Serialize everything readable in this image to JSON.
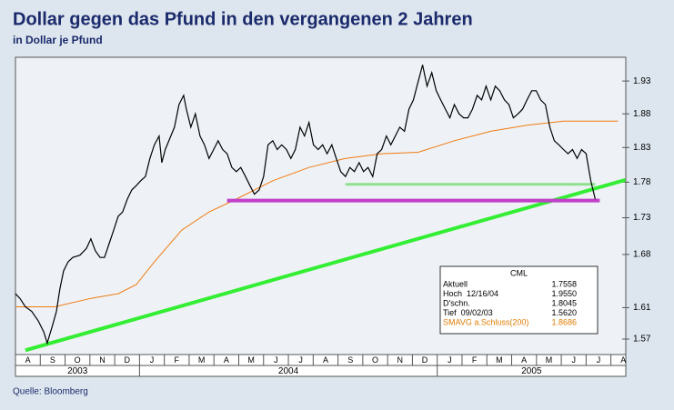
{
  "title": "Dollar gegen das Pfund in den vergangenen 2 Jahren",
  "subtitle": "in Dollar je Pfund",
  "source": "Quelle: Bloomberg",
  "chart_data": {
    "type": "line",
    "log_scale": true,
    "xlim": [
      0,
      24.6
    ],
    "ylim": [
      1.5507,
      1.967
    ],
    "yticks": [
      1.57,
      1.61,
      1.68,
      1.73,
      1.78,
      1.83,
      1.88,
      1.93
    ],
    "months": [
      "A",
      "S",
      "O",
      "N",
      "D",
      "J",
      "F",
      "M",
      "A",
      "M",
      "J",
      "J",
      "A",
      "S",
      "O",
      "N",
      "D",
      "J",
      "F",
      "M",
      "A",
      "M",
      "J",
      "J",
      "A"
    ],
    "years": [
      {
        "label": "2003",
        "range": [
          0,
          5
        ]
      },
      {
        "label": "2004",
        "range": [
          5,
          17
        ]
      },
      {
        "label": "2005",
        "range": [
          17,
          24.6
        ]
      }
    ],
    "series": [
      {
        "color": "#000000",
        "width": 1.2,
        "x": [
          0,
          0.18,
          0.4,
          0.66,
          0.92,
          1.14,
          1.28,
          1.5,
          1.65,
          1.79,
          1.94,
          2.12,
          2.31,
          2.6,
          2.86,
          3.04,
          3.22,
          3.41,
          3.59,
          3.77,
          3.96,
          4.14,
          4.32,
          4.51,
          4.69,
          4.87,
          5.05,
          5.24,
          5.42,
          5.6,
          5.79,
          5.9,
          6.04,
          6.26,
          6.41,
          6.59,
          6.78,
          6.89,
          7.07,
          7.25,
          7.44,
          7.62,
          7.8,
          7.99,
          8.17,
          8.35,
          8.53,
          8.72,
          8.9,
          9.08,
          9.27,
          9.45,
          9.63,
          9.82,
          10,
          10.18,
          10.37,
          10.55,
          10.73,
          10.92,
          11.1,
          11.28,
          11.47,
          11.65,
          11.83,
          12.01,
          12.2,
          12.38,
          12.56,
          12.75,
          12.93,
          13.11,
          13.3,
          13.48,
          13.66,
          13.85,
          14.03,
          14.21,
          14.4,
          14.58,
          14.76,
          14.95,
          15.13,
          15.31,
          15.49,
          15.68,
          15.86,
          16.04,
          16.23,
          16.41,
          16.59,
          16.78,
          16.96,
          17.14,
          17.33,
          17.51,
          17.69,
          17.88,
          18.06,
          18.24,
          18.42,
          18.61,
          18.79,
          18.97,
          19.16,
          19.34,
          19.52,
          19.71,
          19.89,
          20.07,
          20.26,
          20.44,
          20.62,
          20.81,
          20.99,
          21.17,
          21.36,
          21.54,
          21.72,
          21.9,
          22.09,
          22.27,
          22.45,
          22.64,
          22.82,
          23,
          23.19,
          23.37
        ],
        "values": [
          1.628,
          1.622,
          1.611,
          1.605,
          1.593,
          1.579,
          1.565,
          1.588,
          1.605,
          1.634,
          1.658,
          1.67,
          1.676,
          1.679,
          1.688,
          1.701,
          1.685,
          1.676,
          1.676,
          1.694,
          1.713,
          1.732,
          1.738,
          1.756,
          1.769,
          1.775,
          1.782,
          1.788,
          1.814,
          1.834,
          1.847,
          1.808,
          1.827,
          1.847,
          1.86,
          1.894,
          1.908,
          1.887,
          1.86,
          1.88,
          1.847,
          1.834,
          1.814,
          1.827,
          1.84,
          1.827,
          1.821,
          1.801,
          1.795,
          1.801,
          1.788,
          1.775,
          1.763,
          1.769,
          1.788,
          1.834,
          1.84,
          1.827,
          1.834,
          1.827,
          1.814,
          1.827,
          1.86,
          1.847,
          1.867,
          1.834,
          1.827,
          1.834,
          1.821,
          1.834,
          1.814,
          1.795,
          1.788,
          1.801,
          1.795,
          1.808,
          1.795,
          1.801,
          1.788,
          1.821,
          1.827,
          1.847,
          1.834,
          1.847,
          1.86,
          1.854,
          1.887,
          1.901,
          1.929,
          1.955,
          1.922,
          1.943,
          1.915,
          1.901,
          1.887,
          1.874,
          1.894,
          1.88,
          1.874,
          1.874,
          1.887,
          1.908,
          1.901,
          1.922,
          1.901,
          1.922,
          1.915,
          1.901,
          1.894,
          1.874,
          1.88,
          1.887,
          1.901,
          1.915,
          1.915,
          1.901,
          1.894,
          1.86,
          1.84,
          1.834,
          1.827,
          1.821,
          1.827,
          1.814,
          1.827,
          1.821,
          1.782,
          1.756
        ]
      },
      {
        "color": "#f07a10",
        "width": 1,
        "x": [
          0,
          1.58,
          3.04,
          4.14,
          4.87,
          5.6,
          6.7,
          7.8,
          8.9,
          10.37,
          11.83,
          13.3,
          14.76,
          16.23,
          17.69,
          19.16,
          20.62,
          22.09,
          24.29
        ],
        "values": [
          1.611,
          1.611,
          1.622,
          1.628,
          1.64,
          1.67,
          1.713,
          1.738,
          1.756,
          1.782,
          1.801,
          1.814,
          1.821,
          1.823,
          1.84,
          1.854,
          1.863,
          1.869,
          1.869
        ]
      },
      {
        "color": "#33ee33",
        "width": 4,
        "x": [
          0.4,
          24.58
        ],
        "values": [
          1.556,
          1.7832
        ]
      },
      {
        "color": "#8ee08e",
        "width": 3,
        "x": [
          13.3,
          23.37
        ],
        "values": [
          1.777,
          1.777
        ]
      },
      {
        "color": "#c040c8",
        "width": 4,
        "x": [
          8.53,
          23.55
        ],
        "values": [
          1.754,
          1.754
        ]
      }
    ],
    "info_box": {
      "title": "CML",
      "rows": [
        {
          "label": "Aktuell",
          "value": "1.7558",
          "color": "#000000"
        },
        {
          "label": "Hoch  12/16/04",
          "value": "1.9550",
          "color": "#000000"
        },
        {
          "label": "D'schn.",
          "value": "1.8045",
          "color": "#000000"
        },
        {
          "label": "Tief  09/02/03",
          "value": "1.5620",
          "color": "#000000"
        },
        {
          "label": "SMAVG a.Schluss(200)",
          "value": "1.8686",
          "color": "#e07b00"
        }
      ]
    }
  }
}
